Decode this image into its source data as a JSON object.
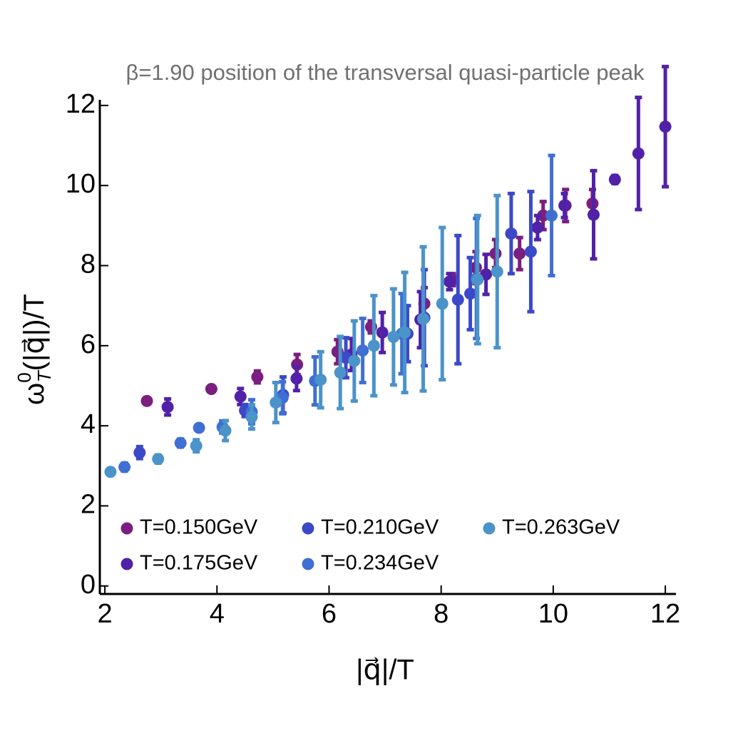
{
  "chart_data": {
    "type": "scatter",
    "title": "β=1.90 position of the transversal quasi-particle peak",
    "xlabel": "|q⃗|/T",
    "ylabel": {
      "base": "ω",
      "sup": "0",
      "sub": "T",
      "rest": "(|q⃗|)/T"
    },
    "xlim": [
      1.91,
      12.19
    ],
    "ylim": [
      -0.2,
      12.14
    ],
    "xticks": [
      2,
      4,
      6,
      8,
      10,
      12
    ],
    "yticks": [
      0,
      2,
      4,
      6,
      8,
      10,
      12
    ],
    "series": [
      {
        "name": "T=0.150GeV",
        "color": "#7a1e80",
        "x": [
          2.75,
          3.9,
          4.72,
          5.43,
          6.15,
          6.75,
          7.7,
          8.2,
          8.62,
          8.97,
          9.4,
          9.82,
          10.22,
          10.7
        ],
        "values": [
          4.62,
          4.92,
          5.22,
          5.53,
          5.85,
          6.47,
          7.05,
          7.65,
          7.95,
          8.3,
          8.3,
          9.25,
          9.5,
          9.55
        ],
        "errors": [
          0.05,
          0.05,
          0.15,
          0.25,
          0.3,
          0.15,
          0.4,
          0.15,
          0.4,
          0.35,
          0.4,
          0.35,
          0.4,
          0.35
        ]
      },
      {
        "name": "T=0.175GeV",
        "color": "#5121a8",
        "x": [
          3.12,
          4.42,
          5.42,
          6.4,
          6.95,
          7.63,
          8.15,
          8.8,
          9.72,
          10.2,
          10.72,
          11.1,
          11.52,
          12.0
        ],
        "values": [
          4.47,
          4.73,
          5.18,
          5.78,
          6.33,
          6.65,
          7.6,
          7.78,
          8.95,
          9.5,
          9.27,
          10.15,
          10.8,
          11.47
        ],
        "errors": [
          0.2,
          0.2,
          0.3,
          0.4,
          0.5,
          0.7,
          0.2,
          0.5,
          0.3,
          0.3,
          1.1,
          0.1,
          1.4,
          1.5
        ]
      },
      {
        "name": "T=0.210GeV",
        "color": "#3b49c9",
        "x": [
          2.62,
          4.5,
          5.18,
          6.3,
          7.4,
          7.7,
          8.3,
          8.52,
          9.25,
          9.6
        ],
        "values": [
          3.33,
          4.38,
          4.77,
          5.7,
          6.3,
          6.7,
          7.15,
          7.3,
          8.8,
          8.35
        ],
        "errors": [
          0.15,
          0.15,
          0.45,
          0.5,
          0.7,
          1.2,
          1.6,
          0.9,
          1.0,
          1.5
        ]
      },
      {
        "name": "T=0.234GeV",
        "color": "#3f6fd2",
        "x": [
          2.35,
          3.35,
          3.68,
          4.1,
          4.62,
          5.17,
          5.75,
          6.6,
          7.3,
          8.63,
          9.97
        ],
        "values": [
          2.97,
          3.57,
          3.95,
          3.97,
          4.35,
          4.7,
          5.12,
          5.88,
          6.3,
          7.68,
          9.25
        ],
        "errors": [
          0.1,
          0.1,
          0.05,
          0.15,
          0.3,
          0.4,
          0.6,
          0.8,
          1.0,
          1.5,
          1.5
        ]
      },
      {
        "name": "T=0.263GeV",
        "color": "#4b93c9",
        "x": [
          2.1,
          2.95,
          3.63,
          4.15,
          4.62,
          5.05,
          5.85,
          6.2,
          6.45,
          6.8,
          7.15,
          7.35,
          7.68,
          8.02,
          8.65,
          9.0
        ],
        "values": [
          2.85,
          3.17,
          3.5,
          3.88,
          4.22,
          4.58,
          5.15,
          5.33,
          5.62,
          6.0,
          6.22,
          6.33,
          6.67,
          7.05,
          7.65,
          7.85
        ],
        "errors": [
          0.05,
          0.1,
          0.15,
          0.25,
          0.3,
          0.5,
          0.7,
          0.9,
          1.0,
          1.25,
          1.2,
          1.5,
          1.8,
          1.9,
          1.6,
          1.9
        ]
      }
    ]
  }
}
